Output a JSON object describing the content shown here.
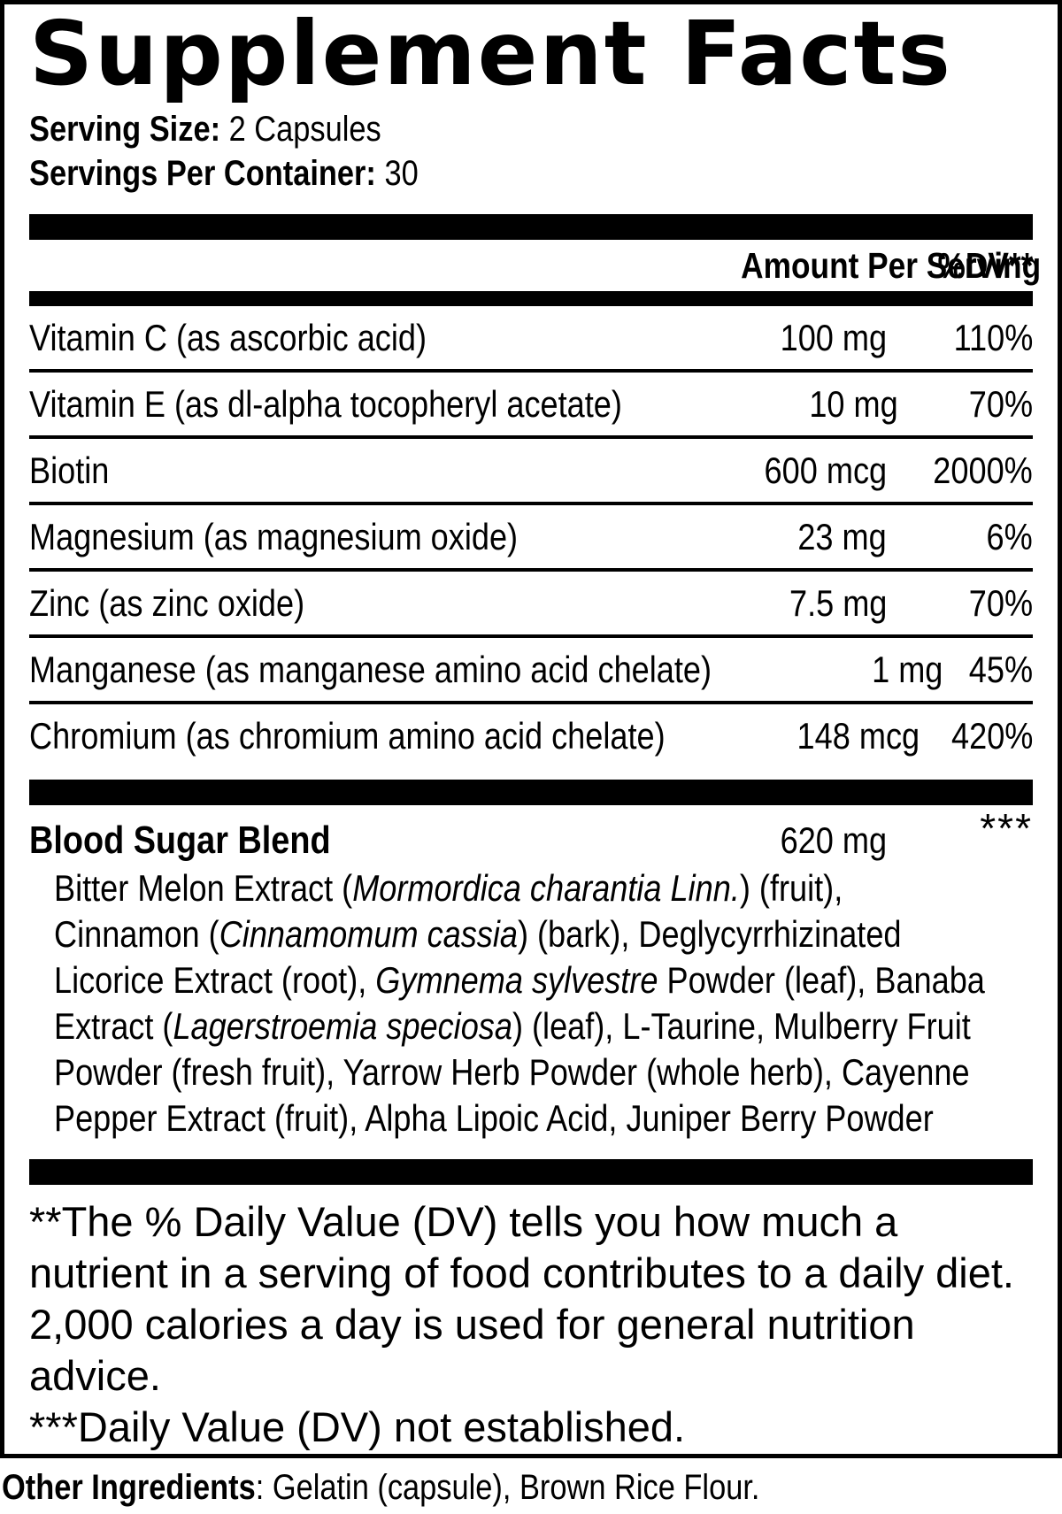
{
  "title": "Supplement Facts",
  "serving": {
    "size_label": "Serving Size:",
    "size_value": " 2 Capsules",
    "container_label": "Servings Per Container:",
    "container_value": " 30"
  },
  "table": {
    "amount_header": "Amount Per Serving",
    "dv_header": "%DV**",
    "rows": [
      {
        "name": "Vitamin C (as ascorbic acid)",
        "amount": "100 mg",
        "dv": "110%"
      },
      {
        "name": "Vitamin E (as dl-alpha tocopheryl acetate)",
        "amount": "10 mg",
        "dv": "70%"
      },
      {
        "name": "Biotin",
        "amount": "600 mcg",
        "dv": "2000%"
      },
      {
        "name": "Magnesium (as magnesium oxide)",
        "amount": "23 mg",
        "dv": "6%"
      },
      {
        "name": "Zinc (as zinc oxide)",
        "amount": "7.5 mg",
        "dv": "70%"
      },
      {
        "name": "Manganese (as manganese amino acid chelate)",
        "amount": "1 mg",
        "dv": "45%"
      },
      {
        "name": "Chromium (as chromium amino acid chelate)",
        "amount": "148 mcg",
        "dv": "420%"
      }
    ]
  },
  "blend": {
    "name": "Blood Sugar Blend",
    "amount": "620 mg",
    "dv": "***",
    "ingredient_lines": [
      [
        {
          "text": "Bitter Melon Extract (",
          "italic": false
        },
        {
          "text": "Mormordica charantia Linn.",
          "italic": true
        },
        {
          "text": ") (fruit),",
          "italic": false
        }
      ],
      [
        {
          "text": "Cinnamon (",
          "italic": false
        },
        {
          "text": "Cinnamomum cassia",
          "italic": true
        },
        {
          "text": ") (bark), Deglycyrrhizinated",
          "italic": false
        }
      ],
      [
        {
          "text": "Licorice Extract (root), ",
          "italic": false
        },
        {
          "text": "Gymnema sylvestre",
          "italic": true
        },
        {
          "text": " Powder (leaf), Banaba",
          "italic": false
        }
      ],
      [
        {
          "text": "Extract (",
          "italic": false
        },
        {
          "text": "Lagerstroemia speciosa",
          "italic": true
        },
        {
          "text": ") (leaf), L-Taurine, Mulberry Fruit",
          "italic": false
        }
      ],
      [
        {
          "text": "Powder (fresh fruit), Yarrow Herb Powder (whole herb), Cayenne",
          "italic": false
        }
      ],
      [
        {
          "text": "Pepper Extract (fruit), Alpha Lipoic Acid, Juniper Berry Powder",
          "italic": false
        }
      ]
    ]
  },
  "footnotes": {
    "dv_note": "**The % Daily Value (DV) tells you how much a nutrient in a serving of food contributes to a daily diet. 2,000 calories a day is used for general nutrition advice.",
    "not_established": "***Daily Value (DV) not established."
  },
  "other_ingredients": {
    "label": "Other Ingredients",
    "text": ": Gelatin (capsule), Brown Rice Flour."
  },
  "colors": {
    "ink": "#000000",
    "background": "#ffffff"
  }
}
